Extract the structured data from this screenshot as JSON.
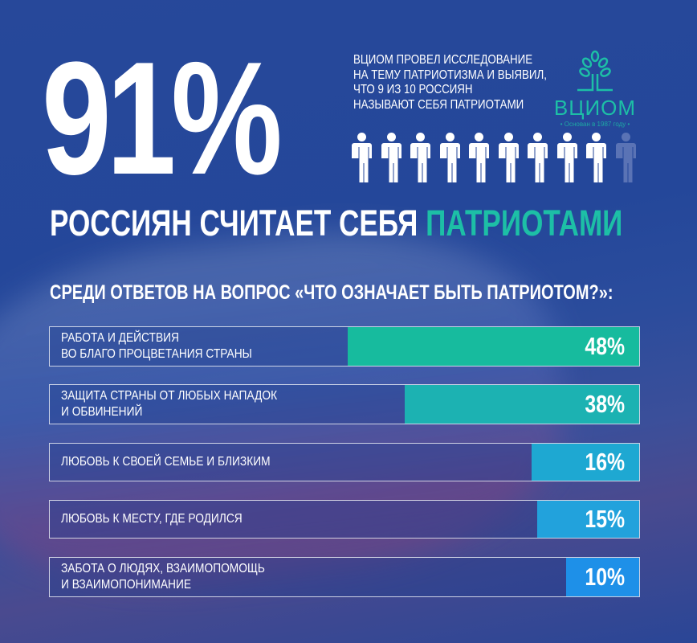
{
  "hero": {
    "value": "91%",
    "headline_main": "РОССИЯН СЧИТАЕТ СЕБЯ",
    "headline_accent": "ПАТРИОТАМИ"
  },
  "intro": {
    "lines": [
      "ВЦИОМ ПРОВЕЛ ИССЛЕДОВАНИЕ",
      "НА ТЕМУ ПАТРИОТИЗМА И ВЫЯВИЛ,",
      "ЧТО 9 ИЗ 10 РОССИЯН",
      "НАЗЫВАЮТ СЕБЯ ПАТРИОТАМИ"
    ]
  },
  "logo": {
    "name": "ВЦИОМ",
    "tagline": "• Основан в 1987 году •"
  },
  "pictogram": {
    "total": 10,
    "highlighted": 9,
    "icon": "person-icon"
  },
  "colors": {
    "background": "#24479a",
    "accent": "#1dbfa6",
    "person_on": "#ffffff",
    "person_off": "#5a73b5"
  },
  "chart_data": {
    "type": "bar",
    "orientation": "horizontal",
    "title": "СРЕДИ ОТВЕТОВ НА ВОПРОС «ЧТО ОЗНАЧАЕТ БЫТЬ ПАТРИОТОМ?»:",
    "categories": [
      [
        "РАБОТА И ДЕЙСТВИЯ",
        "ВО БЛАГО ПРОЦВЕТАНИЯ СТРАНЫ"
      ],
      [
        "ЗАЩИТА СТРАНЫ ОТ ЛЮБЫХ НАПАДОК",
        "И ОБВИНЕНИЙ"
      ],
      [
        "ЛЮБОВЬ К СВОЕЙ СЕМЬЕ И БЛИЗКИМ"
      ],
      [
        "ЛЮБОВЬ К МЕСТУ, ГДЕ РОДИЛСЯ"
      ],
      [
        "ЗАБОТА О ЛЮДЯХ, ВЗАИМОПОМОЩЬ",
        "И ВЗАИМОПОНИМАНИЕ"
      ]
    ],
    "values": [
      48,
      38,
      16,
      15,
      10
    ],
    "value_labels": [
      "48%",
      "38%",
      "16%",
      "15%",
      "10%"
    ],
    "bar_colors": [
      "#17bb9e",
      "#1cb2b2",
      "#1ea8d2",
      "#22a2dc",
      "#1e90e8"
    ],
    "unit": "%"
  }
}
